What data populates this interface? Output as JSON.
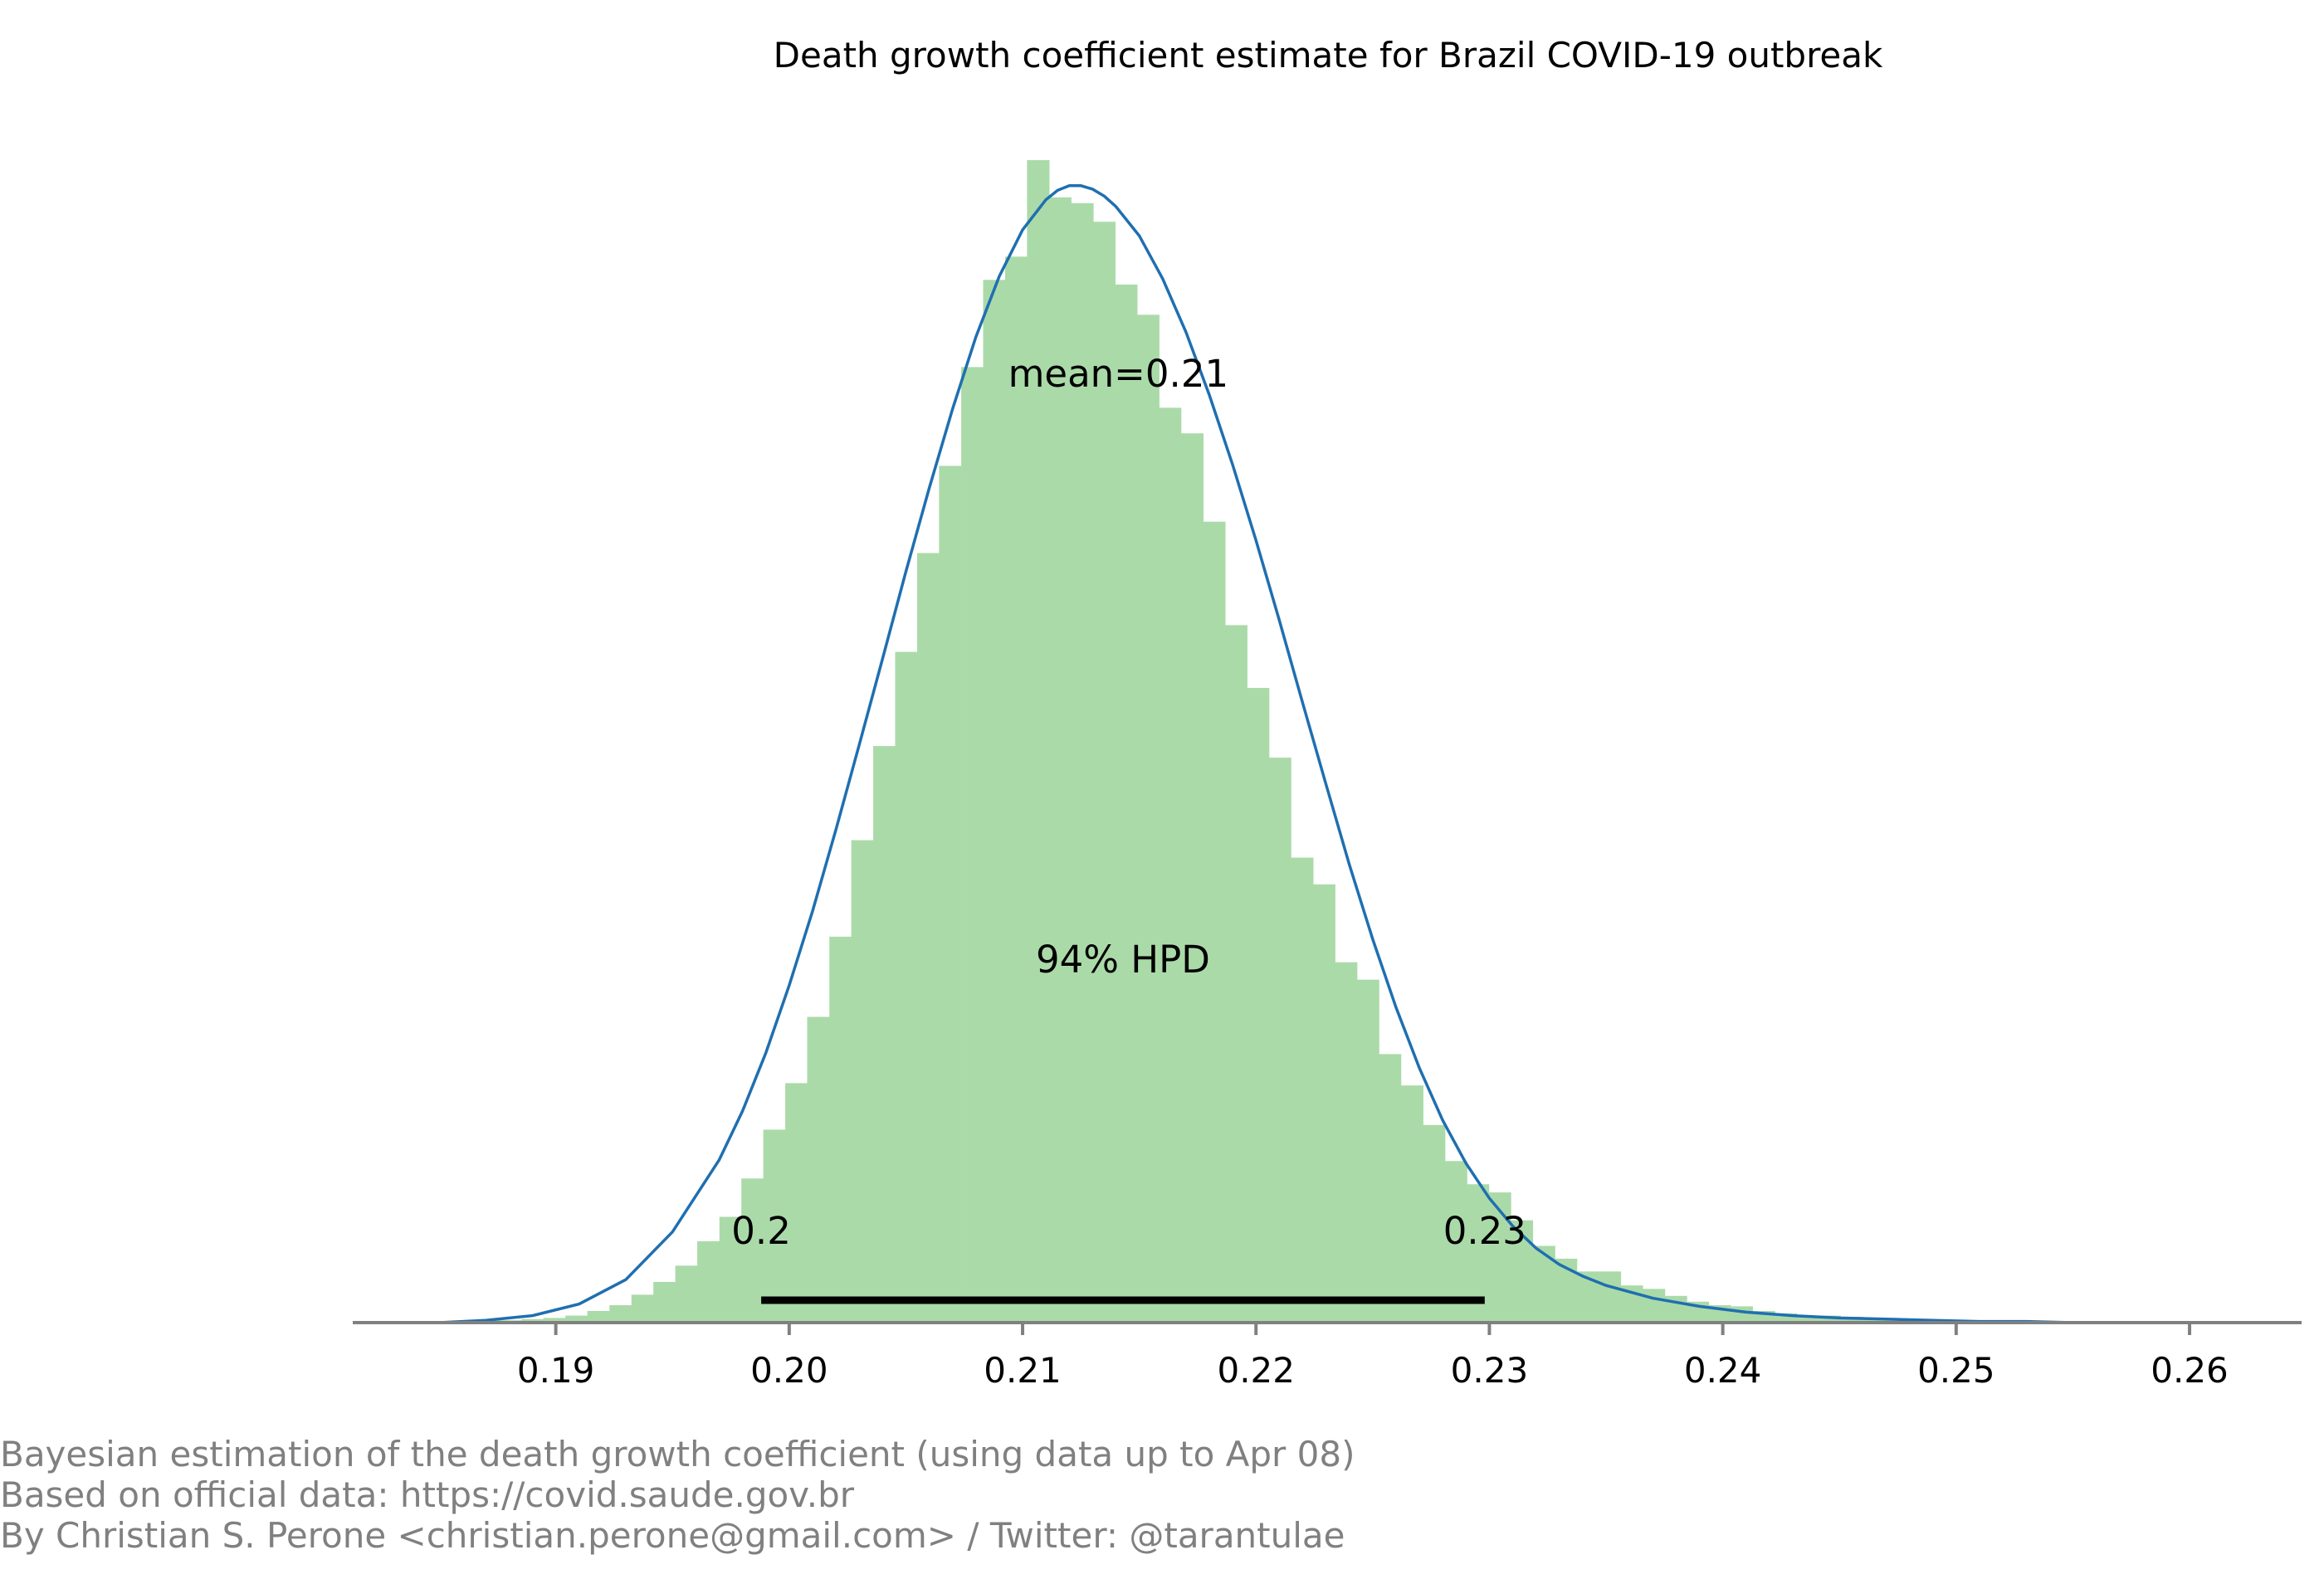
{
  "chart_data": {
    "type": "bar",
    "title": "Death growth coefficient estimate for Brazil COVID-19 outbreak",
    "xlabel": "",
    "ylabel": "",
    "xlim": [
      0.1813,
      0.2648
    ],
    "ylim": [
      0,
      1.0
    ],
    "xticks": [
      0.19,
      0.2,
      0.21,
      0.22,
      0.23,
      0.24,
      0.25,
      0.26
    ],
    "xtick_labels": [
      "0.19",
      "0.20",
      "0.21",
      "0.22",
      "0.23",
      "0.24",
      "0.25",
      "0.26"
    ],
    "grid": false,
    "histogram": {
      "bin_width": 0.000942,
      "bin_starts": [
        0.1857,
        0.18665,
        0.18759,
        0.18853,
        0.18947,
        0.19041,
        0.19135,
        0.1923,
        0.19324,
        0.19418,
        0.19512,
        0.19606,
        0.19701,
        0.19795,
        0.19889,
        0.19983,
        0.20077,
        0.20172,
        0.20266,
        0.2036,
        0.20454,
        0.20548,
        0.20642,
        0.20737,
        0.20831,
        0.20925,
        0.21019,
        0.21113,
        0.21208,
        0.21302,
        0.21396,
        0.2149,
        0.21584,
        0.21679,
        0.21773,
        0.21867,
        0.21961,
        0.22055,
        0.2215,
        0.22244,
        0.22338,
        0.22432,
        0.22526,
        0.22621,
        0.22715,
        0.22809,
        0.22903,
        0.22997,
        0.23091,
        0.23186,
        0.2328,
        0.23374,
        0.23468,
        0.23562,
        0.23657,
        0.23751,
        0.23845,
        0.23939,
        0.24033,
        0.24128,
        0.24222,
        0.24316,
        0.2441,
        0.24504,
        0.24599,
        0.24693,
        0.24787,
        0.24881,
        0.24975,
        0.25069,
        0.25164,
        0.25258,
        0.25352,
        0.25446,
        0.2554,
        0.25635
      ],
      "heights": [
        0.001,
        0.002,
        0.002,
        0.003,
        0.004,
        0.006,
        0.01,
        0.015,
        0.024,
        0.035,
        0.049,
        0.07,
        0.091,
        0.124,
        0.166,
        0.206,
        0.263,
        0.332,
        0.415,
        0.496,
        0.577,
        0.662,
        0.737,
        0.822,
        0.897,
        0.917,
        1.0,
        0.968,
        0.963,
        0.947,
        0.893,
        0.867,
        0.787,
        0.765,
        0.689,
        0.6,
        0.546,
        0.486,
        0.4,
        0.377,
        0.31,
        0.295,
        0.231,
        0.204,
        0.17,
        0.139,
        0.119,
        0.112,
        0.088,
        0.066,
        0.055,
        0.044,
        0.044,
        0.032,
        0.029,
        0.023,
        0.018,
        0.015,
        0.014,
        0.01,
        0.008,
        0.006,
        0.006,
        0.005,
        0.004,
        0.003,
        0.003,
        0.002,
        0.002,
        0.001,
        0.001,
        0.001,
        0.001,
        0.001,
        0.001,
        0.001
      ],
      "color": "#abdaa9"
    },
    "kde_curve": {
      "x": [
        0.185,
        0.187,
        0.189,
        0.191,
        0.193,
        0.195,
        0.197,
        0.198,
        0.199,
        0.2,
        0.201,
        0.202,
        0.203,
        0.204,
        0.205,
        0.206,
        0.207,
        0.208,
        0.209,
        0.21,
        0.211,
        0.2115,
        0.212,
        0.2125,
        0.213,
        0.2135,
        0.214,
        0.215,
        0.216,
        0.217,
        0.218,
        0.219,
        0.22,
        0.221,
        0.222,
        0.223,
        0.224,
        0.225,
        0.226,
        0.227,
        0.228,
        0.229,
        0.23,
        0.231,
        0.232,
        0.233,
        0.234,
        0.235,
        0.237,
        0.239,
        0.241,
        0.243,
        0.245,
        0.247,
        0.249,
        0.251,
        0.253,
        0.255,
        0.257,
        0.259
      ],
      "y": [
        0.0,
        0.002,
        0.006,
        0.016,
        0.037,
        0.078,
        0.14,
        0.182,
        0.232,
        0.29,
        0.354,
        0.424,
        0.497,
        0.571,
        0.646,
        0.718,
        0.786,
        0.848,
        0.9,
        0.94,
        0.966,
        0.974,
        0.978,
        0.978,
        0.975,
        0.969,
        0.96,
        0.935,
        0.898,
        0.852,
        0.798,
        0.738,
        0.673,
        0.604,
        0.533,
        0.463,
        0.394,
        0.33,
        0.271,
        0.219,
        0.174,
        0.137,
        0.107,
        0.083,
        0.064,
        0.05,
        0.04,
        0.032,
        0.021,
        0.014,
        0.009,
        0.006,
        0.004,
        0.003,
        0.002,
        0.001,
        0.001,
        0.0,
        0.0,
        0.0
      ],
      "color": "#1f6fb0"
    },
    "hpd": {
      "label": "94% HPD",
      "low": 0.1988,
      "high": 0.2298,
      "low_label": "0.2",
      "high_label": "0.23",
      "color": "#000000"
    },
    "mean": {
      "label": "mean=0.21",
      "value": 0.2141
    },
    "axis_color": "#808080"
  },
  "footer": {
    "line1": "Bayesian estimation of the death growth coefficient (using data up to Apr 08)",
    "line2": "Based on official data: https://covid.saude.gov.br",
    "line3": "By Christian S. Perone <christian.perone@gmail.com> / Twitter: @tarantulae"
  }
}
